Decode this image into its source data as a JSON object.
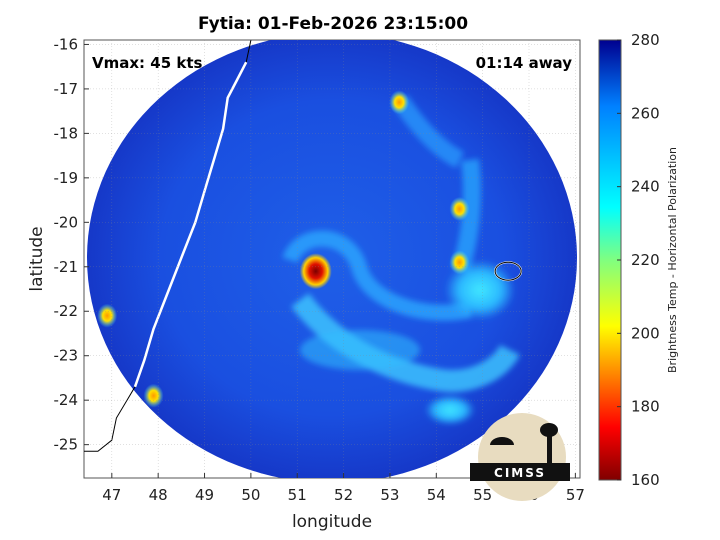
{
  "chart_data": {
    "type": "heatmap",
    "title": "Fytia: 01-Feb-2026 23:15:00",
    "xlabel": "longitude",
    "ylabel": "latitude",
    "xlim": [
      46.4,
      57.1
    ],
    "ylim": [
      -25.75,
      -15.9
    ],
    "x_ticks": [
      47,
      48,
      49,
      50,
      51,
      52,
      53,
      54,
      55,
      56,
      57
    ],
    "x_tick_labels": [
      "47",
      "48",
      "49",
      "50",
      "51",
      "52",
      "53",
      "54",
      "55",
      "56",
      "57"
    ],
    "y_ticks": [
      -16,
      -17,
      -18,
      -19,
      -20,
      -21,
      -22,
      -23,
      -24,
      -25
    ],
    "y_tick_labels": [
      "-16",
      "-17",
      "-18",
      "-19",
      "-20",
      "-21",
      "-22",
      "-23",
      "-24",
      "-25"
    ],
    "colorbar": {
      "label": "Brightness Temp - Horizontal Polarization",
      "range": [
        160,
        280
      ],
      "ticks": [
        160,
        180,
        200,
        220,
        240,
        260,
        280
      ],
      "tick_labels": [
        "160",
        "180",
        "200",
        "220",
        "240",
        "260",
        "280"
      ]
    },
    "annotations": {
      "vmax": "Vmax: 45 kts",
      "time_offset": "01:14 away"
    },
    "grid": true,
    "swath_center": [
      51.75,
      -20.8
    ],
    "features": {
      "background_temp": 268,
      "cold_spots": [
        {
          "lon": 51.4,
          "lat": -21.1,
          "temp": 165
        },
        {
          "lon": 54.5,
          "lat": -19.7,
          "temp": 195
        },
        {
          "lon": 54.5,
          "lat": -20.9,
          "temp": 198
        },
        {
          "lon": 53.2,
          "lat": -17.3,
          "temp": 215
        },
        {
          "lon": 47.9,
          "lat": -23.9,
          "temp": 208
        },
        {
          "lon": 46.9,
          "lat": -22.1,
          "temp": 215
        }
      ]
    }
  },
  "logo": {
    "text": "CIMSS"
  }
}
